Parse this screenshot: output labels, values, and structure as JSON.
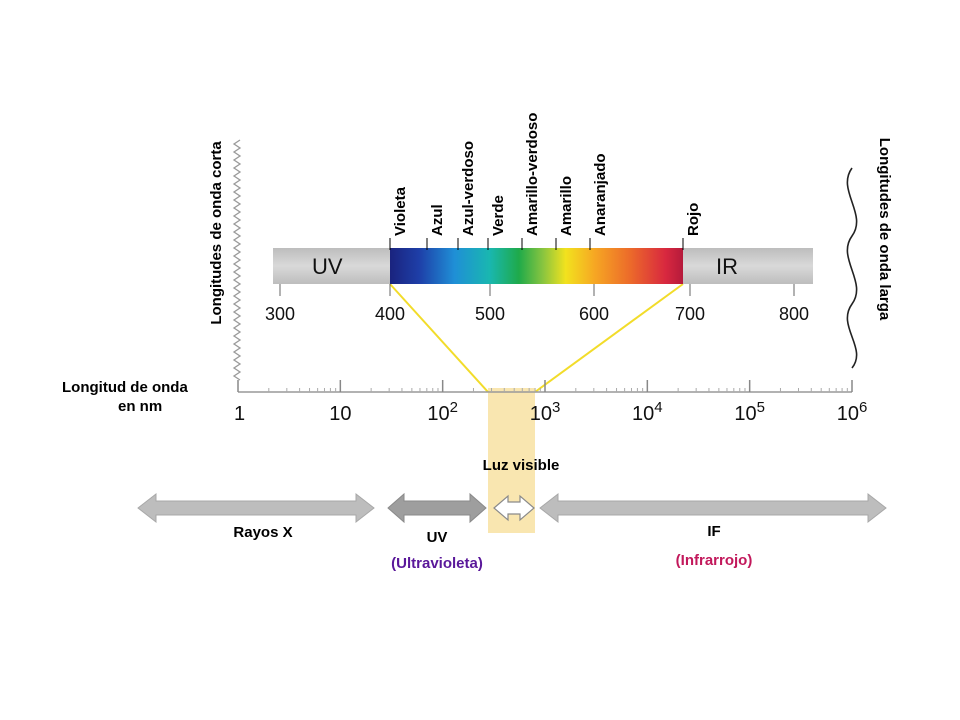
{
  "colors": {
    "visible_band_highlight": "#f9e6b0",
    "projection_lines": "#f2dc2a",
    "gray_band": "#cfcfcf",
    "arrow_gray": "#b9b9b9",
    "uv_subtitle": "#5a189a",
    "ir_subtitle": "#c2185b"
  },
  "short_waves_label": "Longitudes de onda corta",
  "long_waves_label": "Longitudes de onda larga",
  "wavelength_label_line1": "Longitud de onda",
  "wavelength_label_line2": "en nm",
  "spectrum_bar": {
    "uv_label": "UV",
    "ir_label": "IR",
    "ticks": [
      "300",
      "400",
      "500",
      "600",
      "700",
      "800"
    ],
    "colors": [
      "Violeta",
      "Azul",
      "Azul-verdoso",
      "Verde",
      "Amarillo-verdoso",
      "Amarillo",
      "Anaranjado",
      "Rojo"
    ]
  },
  "log_axis": {
    "ticks": [
      {
        "base": "1",
        "exp": ""
      },
      {
        "base": "10",
        "exp": ""
      },
      {
        "base": "10",
        "exp": "2"
      },
      {
        "base": "10",
        "exp": "3"
      },
      {
        "base": "10",
        "exp": "4"
      },
      {
        "base": "10",
        "exp": "5"
      },
      {
        "base": "10",
        "exp": "6"
      }
    ]
  },
  "visible_light_label": "Luz visible",
  "ranges": {
    "xray_label": "Rayos X",
    "uv_label": "UV",
    "uv_subtitle": "(Ultravioleta)",
    "ir_label": "IF",
    "ir_subtitle": "(Infrarrojo)"
  }
}
